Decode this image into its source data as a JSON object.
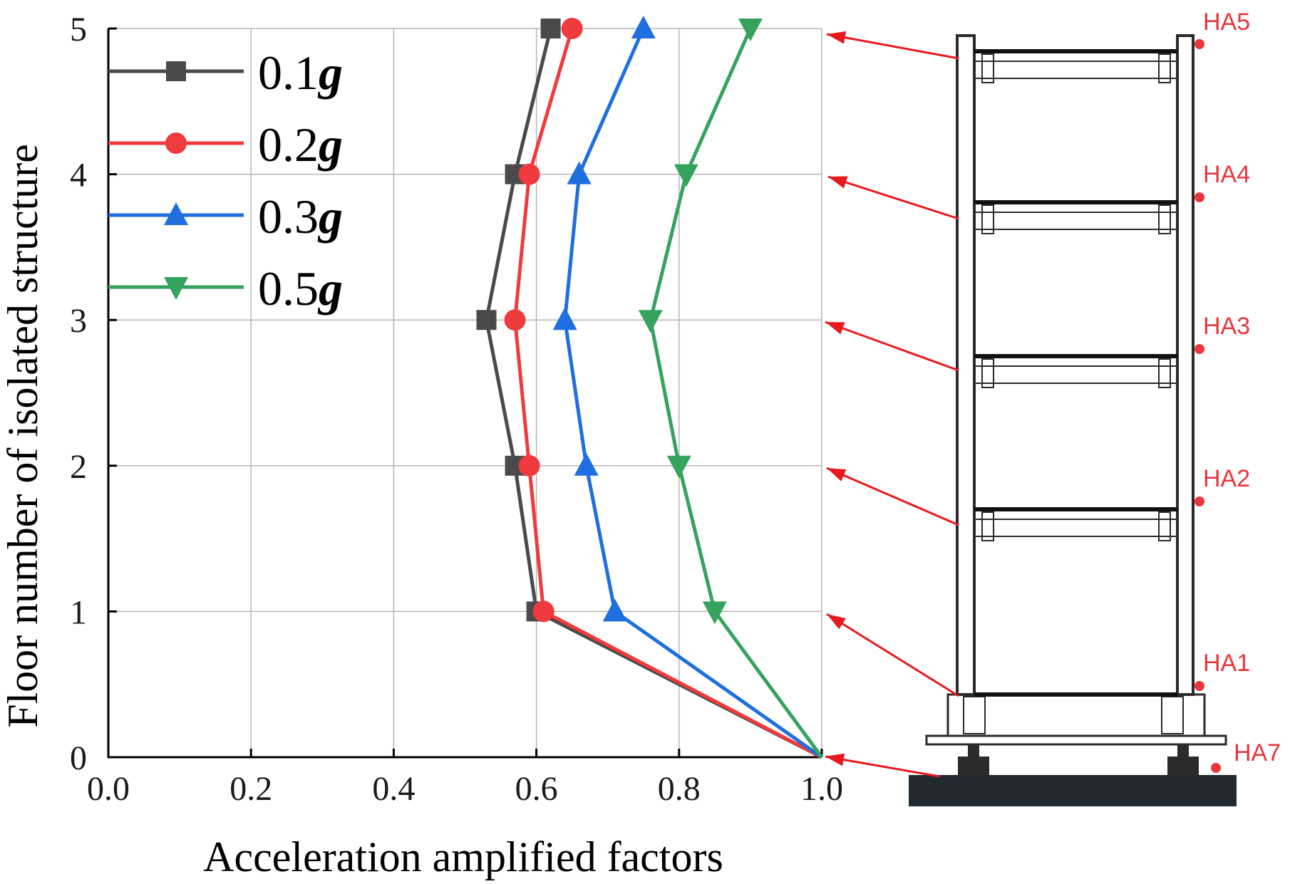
{
  "chart_data": {
    "type": "line",
    "xlabel": "Acceleration amplified factors",
    "ylabel": "Floor number of isolated structure",
    "xlim": [
      0.0,
      1.0
    ],
    "ylim": [
      0,
      5
    ],
    "x_ticks": [
      "0.0",
      "0.2",
      "0.4",
      "0.6",
      "0.8",
      "1.0"
    ],
    "y_ticks": [
      "0",
      "1",
      "2",
      "3",
      "4",
      "5"
    ],
    "grid": true,
    "legend_position": "top-left",
    "floors": [
      0,
      1,
      2,
      3,
      4,
      5
    ],
    "series": [
      {
        "name": "0.1",
        "name_suffix": "g",
        "marker": "square",
        "color": "#4a4a4a",
        "values": [
          1.0,
          0.6,
          0.57,
          0.53,
          0.57,
          0.62
        ]
      },
      {
        "name": "0.2",
        "name_suffix": "g",
        "marker": "circle",
        "color": "#ef3b3e",
        "values": [
          1.0,
          0.61,
          0.59,
          0.57,
          0.59,
          0.65
        ]
      },
      {
        "name": "0.3",
        "name_suffix": "g",
        "marker": "triangle-up",
        "color": "#1f6fe0",
        "values": [
          1.0,
          0.71,
          0.67,
          0.64,
          0.66,
          0.75
        ]
      },
      {
        "name": "0.5",
        "name_suffix": "g",
        "marker": "triangle-down",
        "color": "#35a35d",
        "values": [
          1.0,
          0.85,
          0.8,
          0.76,
          0.81,
          0.9
        ]
      }
    ]
  },
  "diagram": {
    "sensor_labels": [
      "HA5",
      "HA4",
      "HA3",
      "HA2",
      "HA1",
      "HA7"
    ],
    "arrow_color": "#e8191e",
    "label_color": "#e8363b"
  }
}
